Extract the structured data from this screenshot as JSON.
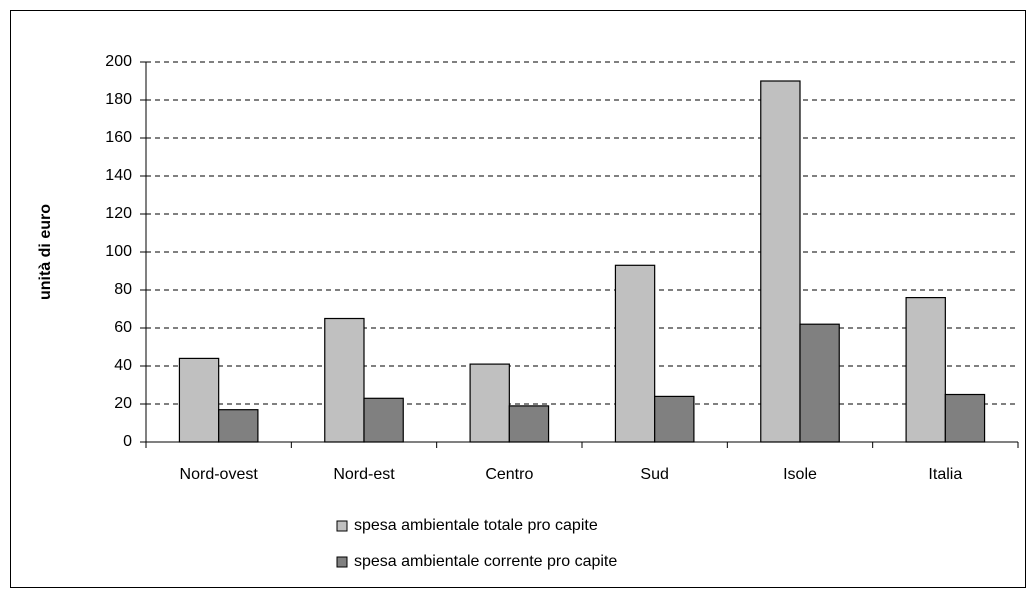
{
  "chart_data": {
    "type": "bar",
    "ylabel": "unità di euro",
    "categories": [
      "Nord-ovest",
      "Nord-est",
      "Centro",
      "Sud",
      "Isole",
      "Italia"
    ],
    "series": [
      {
        "name": "spesa ambientale totale pro capite",
        "color": "#c0c0c0",
        "values": [
          44,
          65,
          41,
          93,
          190,
          76
        ]
      },
      {
        "name": "spesa ambientale corrente pro capite",
        "color": "#808080",
        "values": [
          17,
          23,
          19,
          24,
          62,
          25
        ]
      }
    ],
    "ylim": [
      0,
      200
    ],
    "yticks": [
      0,
      20,
      40,
      60,
      80,
      100,
      120,
      140,
      160,
      180,
      200
    ],
    "grid": true,
    "legend": "bottom"
  }
}
